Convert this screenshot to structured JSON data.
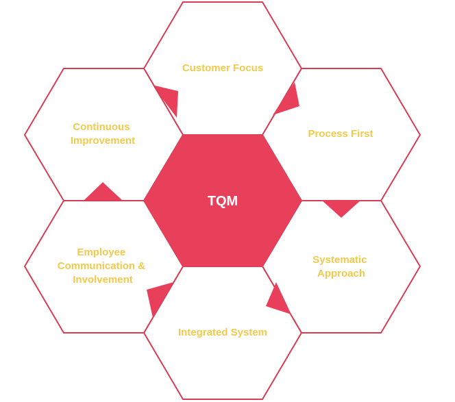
{
  "diagram": {
    "center": {
      "label": "TQM"
    },
    "nodes": [
      {
        "id": "customer-focus",
        "lines": [
          "Customer Focus"
        ]
      },
      {
        "id": "process-first",
        "lines": [
          "Process First"
        ]
      },
      {
        "id": "systematic-approach",
        "lines": [
          "Systematic",
          "Approach"
        ]
      },
      {
        "id": "integrated-system",
        "lines": [
          "Integrated System"
        ]
      },
      {
        "id": "employee-communication",
        "lines": [
          "Employee",
          "Communication &",
          "Involvement"
        ]
      },
      {
        "id": "continuous-improvement",
        "lines": [
          "Continuous",
          "Improvement"
        ]
      }
    ],
    "colors": {
      "accent": "#e8405a",
      "outline": "#d63d55",
      "label": "#f2c94c",
      "center_text": "#ffffff"
    }
  }
}
